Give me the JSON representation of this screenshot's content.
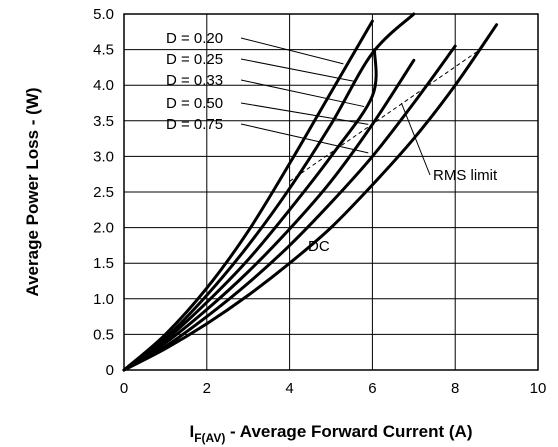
{
  "chart_data": {
    "type": "line",
    "xlabel_main": "I",
    "xlabel_sub": "F(AV)",
    "xlabel_rest": " - Average Forward Current (A)",
    "ylabel": "Average Power Loss - (W)",
    "xlim": [
      0,
      10
    ],
    "ylim": [
      0,
      5.0
    ],
    "grid": true,
    "x_ticks": [
      "0",
      "2",
      "4",
      "6",
      "8",
      "10"
    ],
    "y_ticks": [
      "0",
      "0.5",
      "1.0",
      "1.5",
      "2.0",
      "2.5",
      "3.0",
      "3.5",
      "4.0",
      "4.5",
      "5.0"
    ],
    "series": [
      {
        "name": "D = 0.20",
        "x": [
          0,
          1,
          2,
          3,
          4,
          5,
          6
        ],
        "y": [
          0,
          0.5,
          1.15,
          1.95,
          2.9,
          3.9,
          4.9
        ]
      },
      {
        "name": "D = 0.25",
        "x": [
          0,
          1,
          2,
          3,
          4,
          5,
          6,
          7
        ],
        "y": [
          0,
          0.45,
          1.05,
          1.75,
          2.55,
          3.45,
          4.45,
          5.0
        ]
      },
      {
        "name": "D = 0.33",
        "x": [
          0,
          1,
          2,
          3,
          4,
          5,
          6,
          6.05
        ],
        "y": [
          0,
          0.42,
          0.95,
          1.55,
          2.25,
          3.0,
          3.85,
          4.5
        ]
      },
      {
        "name": "D = 0.50",
        "x": [
          0,
          1,
          2,
          3,
          4,
          5,
          6,
          7
        ],
        "y": [
          0,
          0.38,
          0.85,
          1.38,
          1.98,
          2.65,
          3.45,
          4.35
        ]
      },
      {
        "name": "D = 0.75",
        "x": [
          0,
          1,
          2,
          3,
          4,
          5,
          6,
          7,
          8
        ],
        "y": [
          0,
          0.33,
          0.75,
          1.22,
          1.75,
          2.35,
          3.0,
          3.75,
          4.55
        ]
      },
      {
        "name": "DC",
        "x": [
          0,
          1,
          2,
          3,
          4,
          5,
          6,
          7,
          8,
          9
        ],
        "y": [
          0,
          0.3,
          0.65,
          1.05,
          1.5,
          2.0,
          2.6,
          3.25,
          4.0,
          4.85
        ]
      }
    ],
    "rms_limit": {
      "name": "RMS limit",
      "x": [
        4,
        8.6
      ],
      "y": [
        2.65,
        4.5
      ]
    },
    "annotations": [
      "D = 0.20",
      "D = 0.25",
      "D = 0.33",
      "D = 0.50",
      "D = 0.75",
      "RMS limit",
      "DC"
    ]
  }
}
